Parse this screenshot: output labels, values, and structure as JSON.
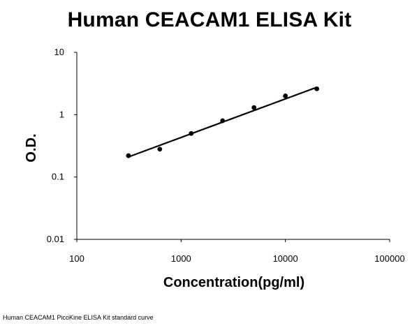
{
  "chart_data": {
    "type": "scatter",
    "title": "Human CEACAM1 ELISA Kit",
    "xlabel": "Concentration(pg/ml)",
    "ylabel": "O.D.",
    "x_scale": "log",
    "y_scale": "log",
    "xlim": [
      100,
      100000
    ],
    "ylim": [
      0.01,
      10
    ],
    "x_ticks": [
      "100",
      "1000",
      "10000",
      "100000"
    ],
    "y_ticks": [
      "10",
      "1",
      "0.1",
      "0.01"
    ],
    "grid": false,
    "legend": "none",
    "series": [
      {
        "points": [
          {
            "x": 312.5,
            "y": 0.22
          },
          {
            "x": 625,
            "y": 0.28
          },
          {
            "x": 1250,
            "y": 0.5
          },
          {
            "x": 2500,
            "y": 0.8
          },
          {
            "x": 5000,
            "y": 1.3
          },
          {
            "x": 10000,
            "y": 2.0
          },
          {
            "x": 20000,
            "y": 2.6
          }
        ],
        "trendline": {
          "x": [
            312.5,
            20000
          ],
          "y": [
            0.21,
            2.75
          ]
        },
        "color": "#000000"
      }
    ]
  },
  "caption": "Human CEACAM1 PicoKine ELISA Kit standard curve"
}
